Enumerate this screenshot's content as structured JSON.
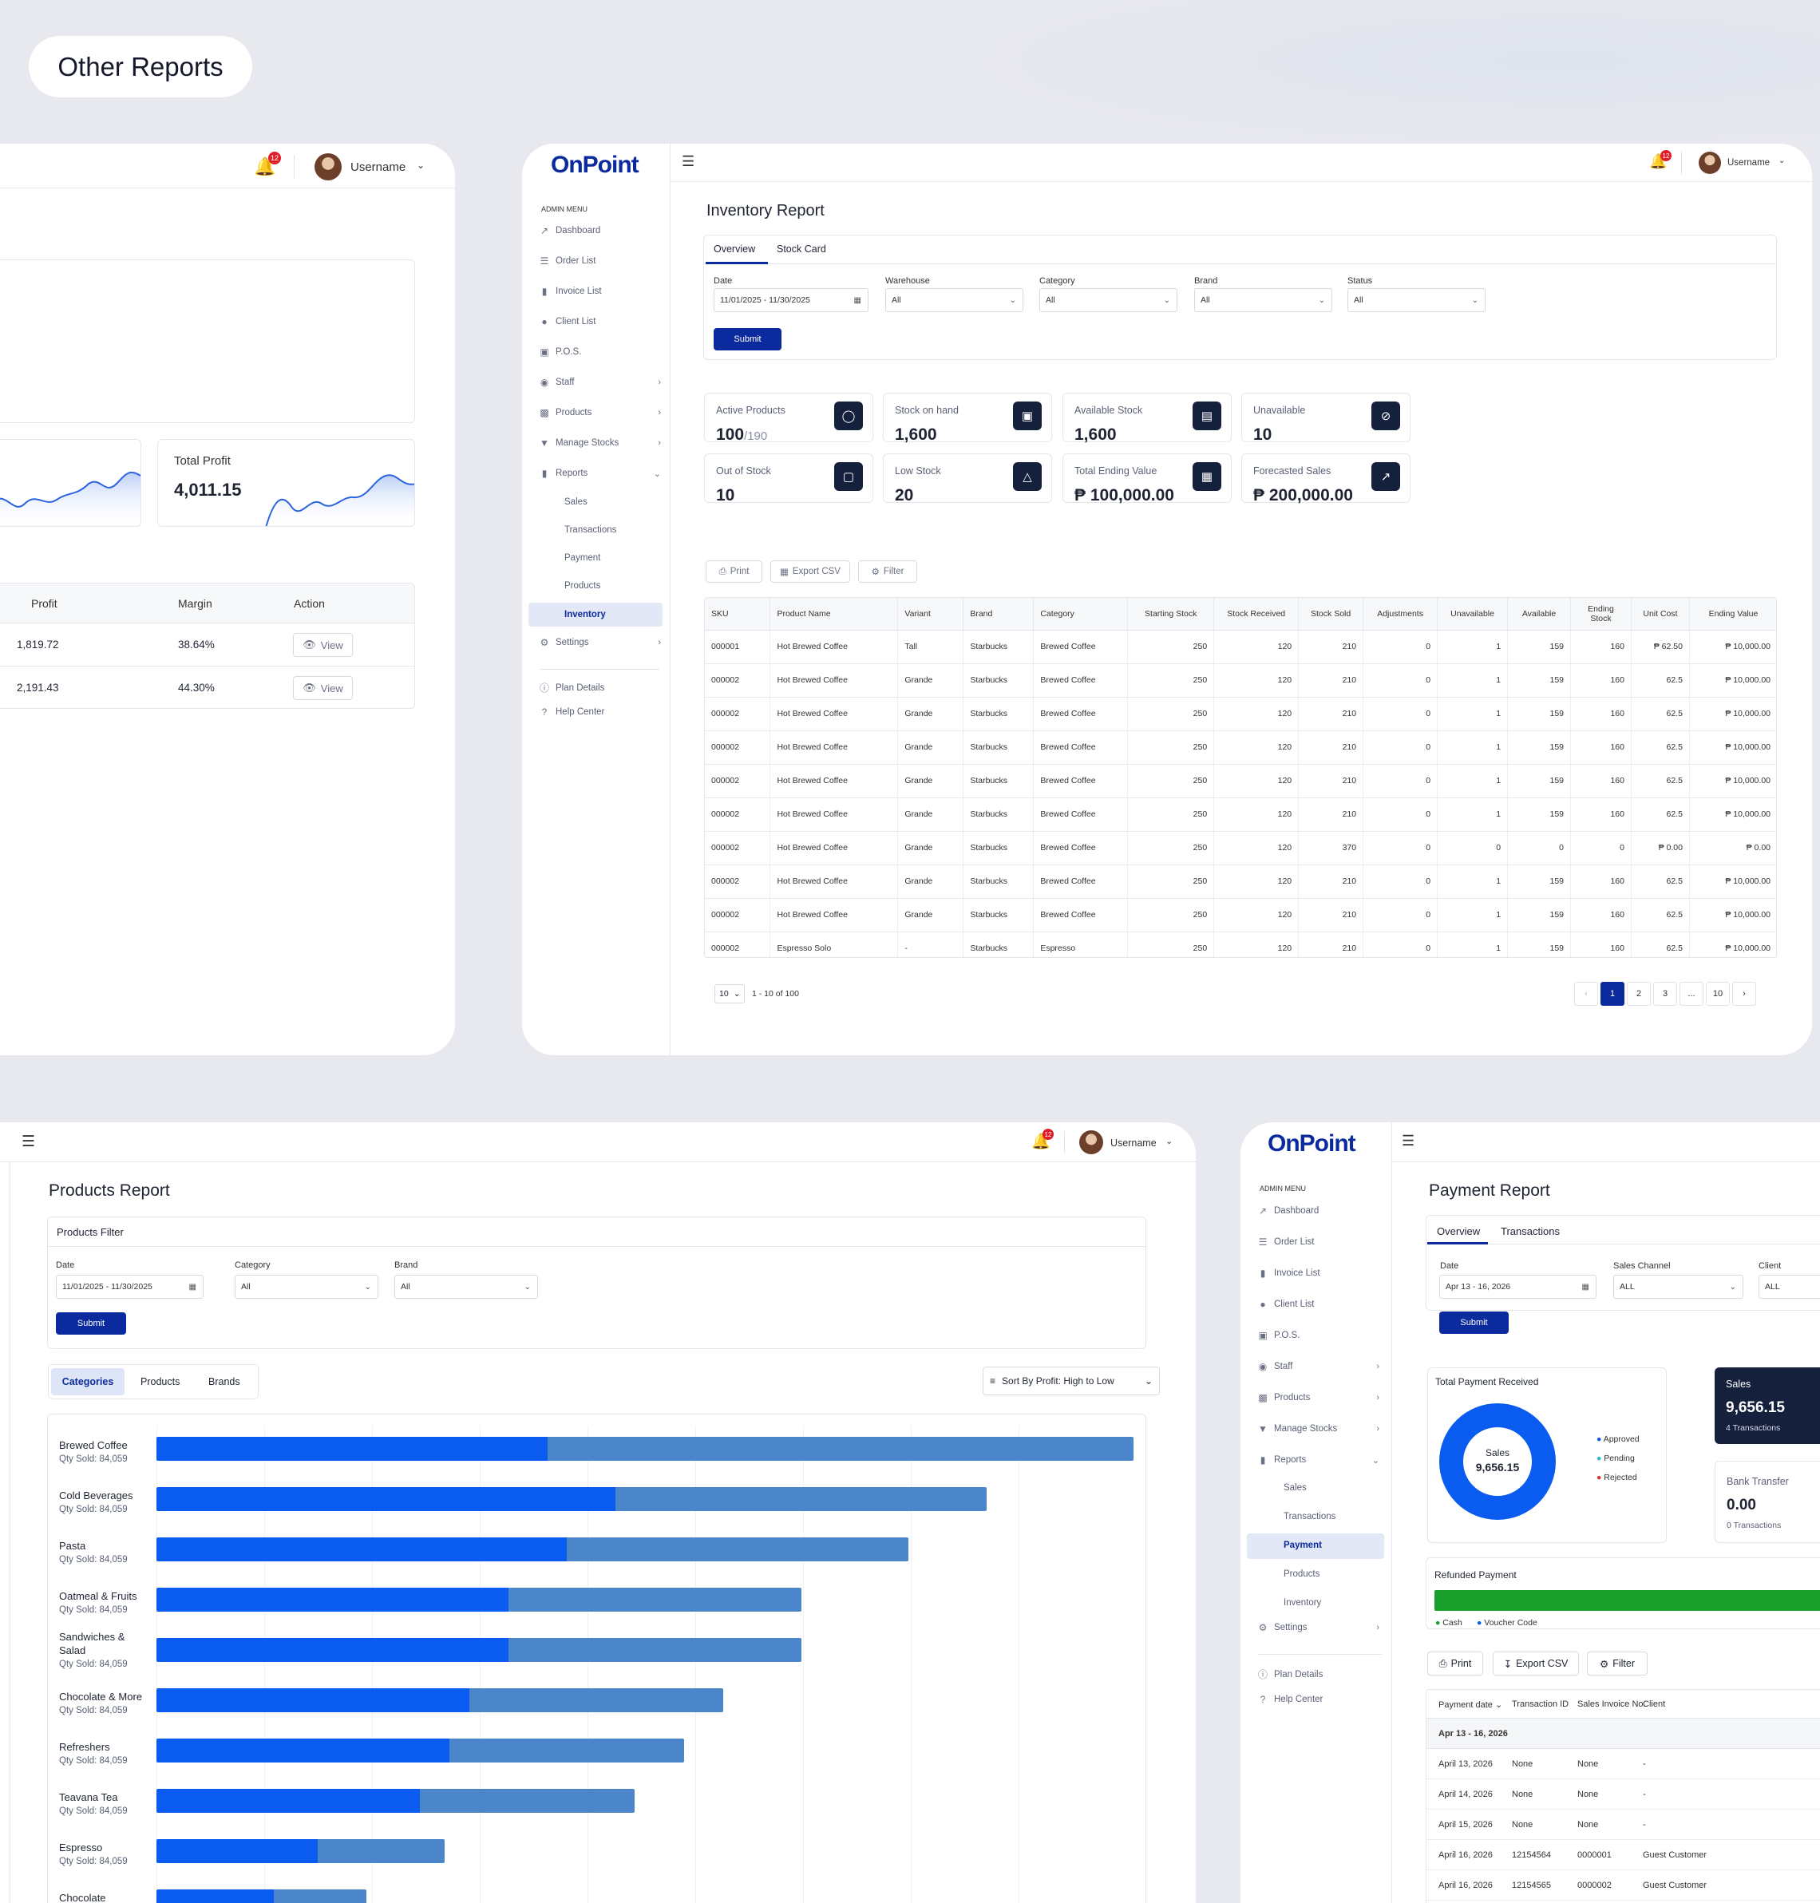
{
  "page_title": "Other Reports",
  "left_panel": {
    "notif_count": "12",
    "username": "Username",
    "total_profit": {
      "label": "Total Profit",
      "value": "4,011.15"
    },
    "table": {
      "headers": [
        "Profit",
        "Margin",
        "Action"
      ],
      "rows": [
        {
          "profit": "1,819.72",
          "margin": "38.64%",
          "action": "View"
        },
        {
          "profit": "2,191.43",
          "margin": "44.30%",
          "action": "View"
        }
      ]
    }
  },
  "inventory": {
    "logo": "OnPoint",
    "notif_count": "12",
    "username": "Username",
    "sidebar": {
      "heading": "ADMIN MENU",
      "items": [
        "Dashboard",
        "Order List",
        "Invoice List",
        "Client List",
        "P.O.S.",
        "Staff",
        "Products",
        "Manage Stocks",
        "Reports"
      ],
      "report_subs": [
        "Sales",
        "Transactions",
        "Payment",
        "Products",
        "Inventory"
      ],
      "settings": "Settings",
      "footer": [
        "Plan Details",
        "Help Center"
      ]
    },
    "title": "Inventory Report",
    "tabs": [
      "Overview",
      "Stock Card"
    ],
    "filters": {
      "date_label": "Date",
      "date_value": "11/01/2025 - 11/30/2025",
      "warehouse_label": "Warehouse",
      "warehouse_value": "All",
      "category_label": "Category",
      "category_value": "All",
      "brand_label": "Brand",
      "brand_value": "All",
      "status_label": "Status",
      "status_value": "All",
      "submit": "Submit"
    },
    "stats": [
      {
        "label": "Active Products",
        "value": "100",
        "suffix": "/190",
        "icon": "tag-icon"
      },
      {
        "label": "Stock on hand",
        "value": "1,600",
        "suffix": "",
        "icon": "boxes-icon"
      },
      {
        "label": "Available Stock",
        "value": "1,600",
        "suffix": "",
        "icon": "box-check-icon"
      },
      {
        "label": "Unavailable",
        "value": "10",
        "suffix": "",
        "icon": "ban-icon"
      },
      {
        "label": "Out of Stock",
        "value": "10",
        "suffix": "",
        "icon": "empty-box-icon"
      },
      {
        "label": "Low Stock",
        "value": "20",
        "suffix": "",
        "icon": "warning-icon"
      },
      {
        "label": "Total Ending Value",
        "value": "₱ 100,000.00",
        "suffix": "",
        "icon": "report-icon"
      },
      {
        "label": "Forecasted Sales",
        "value": "₱ 200,000.00",
        "suffix": "",
        "icon": "trend-up-icon"
      }
    ],
    "toolbar": {
      "print": "Print",
      "export": "Export CSV",
      "filter": "Filter"
    },
    "table": {
      "headers": [
        "SKU",
        "Product Name",
        "Variant",
        "Brand",
        "Category",
        "Starting Stock",
        "Stock Received",
        "Stock Sold",
        "Adjustments",
        "Unavailable",
        "Available",
        "Ending Stock",
        "Unit Cost",
        "Ending Value"
      ],
      "rows": [
        [
          "000001",
          "Hot Brewed Coffee",
          "Tall",
          "Starbucks",
          "Brewed Coffee",
          "250",
          "120",
          "210",
          "0",
          "1",
          "159",
          "160",
          "₱ 62.50",
          "₱ 10,000.00"
        ],
        [
          "000002",
          "Hot Brewed Coffee",
          "Grande",
          "Starbucks",
          "Brewed Coffee",
          "250",
          "120",
          "210",
          "0",
          "1",
          "159",
          "160",
          "62.5",
          "₱ 10,000.00"
        ],
        [
          "000002",
          "Hot Brewed Coffee",
          "Grande",
          "Starbucks",
          "Brewed Coffee",
          "250",
          "120",
          "210",
          "0",
          "1",
          "159",
          "160",
          "62.5",
          "₱ 10,000.00"
        ],
        [
          "000002",
          "Hot Brewed Coffee",
          "Grande",
          "Starbucks",
          "Brewed Coffee",
          "250",
          "120",
          "210",
          "0",
          "1",
          "159",
          "160",
          "62.5",
          "₱ 10,000.00"
        ],
        [
          "000002",
          "Hot Brewed Coffee",
          "Grande",
          "Starbucks",
          "Brewed Coffee",
          "250",
          "120",
          "210",
          "0",
          "1",
          "159",
          "160",
          "62.5",
          "₱ 10,000.00"
        ],
        [
          "000002",
          "Hot Brewed Coffee",
          "Grande",
          "Starbucks",
          "Brewed Coffee",
          "250",
          "120",
          "210",
          "0",
          "1",
          "159",
          "160",
          "62.5",
          "₱ 10,000.00"
        ],
        [
          "000002",
          "Hot Brewed Coffee",
          "Grande",
          "Starbucks",
          "Brewed Coffee",
          "250",
          "120",
          "370",
          "0",
          "0",
          "0",
          "0",
          "₱ 0.00",
          "₱ 0.00"
        ],
        [
          "000002",
          "Hot Brewed Coffee",
          "Grande",
          "Starbucks",
          "Brewed Coffee",
          "250",
          "120",
          "210",
          "0",
          "1",
          "159",
          "160",
          "62.5",
          "₱ 10,000.00"
        ],
        [
          "000002",
          "Hot Brewed Coffee",
          "Grande",
          "Starbucks",
          "Brewed Coffee",
          "250",
          "120",
          "210",
          "0",
          "1",
          "159",
          "160",
          "62.5",
          "₱ 10,000.00"
        ],
        [
          "000002",
          "Espresso Solo",
          "-",
          "Starbucks",
          "Espresso",
          "250",
          "120",
          "210",
          "0",
          "1",
          "159",
          "160",
          "62.5",
          "₱ 10,000.00"
        ]
      ]
    },
    "pagination": {
      "per_page": "10",
      "range": "1 - 10 of 100",
      "pages": [
        "1",
        "2",
        "3",
        "...",
        "10"
      ]
    }
  },
  "products": {
    "notif_count": "12",
    "username": "Username",
    "title": "Products Report",
    "filter_title": "Products Filter",
    "filters": {
      "date_label": "Date",
      "date_value": "11/01/2025 - 11/30/2025",
      "category_label": "Category",
      "category_value": "All",
      "brand_label": "Brand",
      "brand_value": "All",
      "submit": "Submit"
    },
    "tabs": [
      "Categories",
      "Products",
      "Brands"
    ],
    "sort_label": "Sort By Profit: High to Low",
    "chart_data": {
      "type": "bar",
      "orientation": "horizontal",
      "categories": [
        "Brewed Coffee",
        "Cold Beverages",
        "Pasta",
        "Oatmeal & Fruits",
        "Sandwiches & Salad",
        "Chocolate & More",
        "Refreshers",
        "Teavana Tea",
        "Espresso",
        "Chocolate"
      ],
      "sublabels": [
        "Qty Sold: 84,059",
        "Qty Sold: 84,059",
        "Qty Sold: 84,059",
        "Qty Sold: 84,059",
        "Qty Sold: 84,059",
        "Qty Sold: 84,059",
        "Qty Sold: 84,059",
        "Qty Sold: 84,059",
        "Qty Sold: 84,059",
        ""
      ],
      "series": [
        {
          "color": "#0a5cf0",
          "values": [
            0.4,
            0.47,
            0.42,
            0.36,
            0.36,
            0.32,
            0.3,
            0.27,
            0.165,
            0.12
          ]
        },
        {
          "color": "#4a86c9",
          "values": [
            0.6,
            0.38,
            0.35,
            0.3,
            0.3,
            0.26,
            0.24,
            0.22,
            0.13,
            0.095
          ]
        }
      ]
    }
  },
  "payment": {
    "logo": "OnPoint",
    "sidebar": {
      "heading": "ADMIN MENU",
      "items": [
        "Dashboard",
        "Order List",
        "Invoice List",
        "Client List",
        "P.O.S.",
        "Staff",
        "Products",
        "Manage Stocks",
        "Reports"
      ],
      "report_subs": [
        "Sales",
        "Transactions",
        "Payment",
        "Products",
        "Inventory"
      ],
      "settings": "Settings",
      "footer": [
        "Plan Details",
        "Help Center"
      ]
    },
    "title": "Payment Report",
    "tabs": [
      "Overview",
      "Transactions"
    ],
    "filters": {
      "date_label": "Date",
      "date_value": "Apr 13 - 16, 2026",
      "channel_label": "Sales Channel",
      "channel_value": "ALL",
      "client_label": "Client",
      "client_value": "ALL",
      "submit": "Submit"
    },
    "total_received_label": "Total Payment Received",
    "donut": {
      "label": "Sales",
      "value": "9,656.15"
    },
    "legend": [
      {
        "label": "Approved",
        "color": "#0a5cf0"
      },
      {
        "label": "Pending",
        "color": "#22b8cf"
      },
      {
        "label": "Rejected",
        "color": "#e03131"
      }
    ],
    "sales_card": {
      "label": "Sales",
      "value": "9,656.15",
      "sub": "4 Transactions"
    },
    "bank_card": {
      "label": "Bank Transfer",
      "value": "0.00",
      "sub": "0 Transactions"
    },
    "refunded_label": "Refunded Payment",
    "refund_legend": [
      {
        "label": "Cash",
        "color": "#1a9e2a"
      },
      {
        "label": "Voucher Code",
        "color": "#0a5cf0"
      }
    ],
    "toolbar": {
      "print": "Print",
      "export": "Export CSV",
      "filter": "Filter"
    },
    "table": {
      "headers": [
        "Payment date",
        "Transaction ID",
        "Sales Invoice No.",
        "Client"
      ],
      "group": "Apr 13 - 16, 2026",
      "rows": [
        [
          "April 13, 2026",
          "None",
          "None",
          "-"
        ],
        [
          "April 14, 2026",
          "None",
          "None",
          "-"
        ],
        [
          "April 15, 2026",
          "None",
          "None",
          "-"
        ],
        [
          "April 16, 2026",
          "12154564",
          "0000001",
          "Guest Customer"
        ],
        [
          "April 16, 2026",
          "12154565",
          "0000002",
          "Guest Customer"
        ]
      ]
    }
  },
  "colors": {
    "primary": "#0a2a9e",
    "bar_dark": "#0a5cf0",
    "bar_light": "#4a86c9",
    "icon_bg": "#15203d",
    "notif": "#e01e2a"
  }
}
